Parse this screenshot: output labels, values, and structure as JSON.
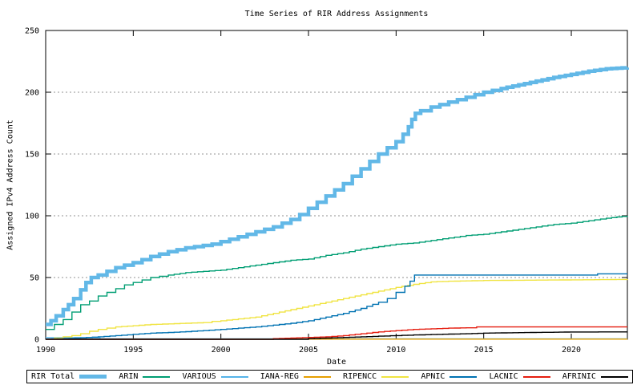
{
  "chart_data": {
    "type": "line",
    "title": "Time Series of RIR Address Assignments",
    "xlabel": "Date",
    "ylabel": "Assigned IPv4 Address Count",
    "xlim": [
      1990,
      2023.2
    ],
    "ylim": [
      0,
      250
    ],
    "xticks": [
      "1990",
      "1995",
      "2000",
      "2005",
      "2010",
      "2015",
      "2020"
    ],
    "xtick_values": [
      1990,
      1995,
      2000,
      2005,
      2010,
      2015,
      2020
    ],
    "yticks": [
      "0",
      "50",
      "100",
      "150",
      "200",
      "250"
    ],
    "ytick_values": [
      0,
      50,
      100,
      150,
      200,
      250
    ],
    "grid": "horizontal-dashed",
    "grid_color": "#909090",
    "legend_position": "bottom-row-boxed",
    "series": [
      {
        "name": "RIR Total",
        "color": "#62b8e7",
        "line_width": 4.5,
        "points": [
          [
            1990,
            12
          ],
          [
            1990.3,
            15
          ],
          [
            1990.6,
            19
          ],
          [
            1991,
            24
          ],
          [
            1991.3,
            28
          ],
          [
            1991.6,
            33
          ],
          [
            1992,
            40
          ],
          [
            1992.3,
            46
          ],
          [
            1992.6,
            50
          ],
          [
            1993,
            52
          ],
          [
            1993.5,
            55
          ],
          [
            1994,
            58
          ],
          [
            1994.5,
            60
          ],
          [
            1995,
            62
          ],
          [
            1995.5,
            64.5
          ],
          [
            1996,
            67
          ],
          [
            1996.5,
            69
          ],
          [
            1997,
            71
          ],
          [
            1997.5,
            72.5
          ],
          [
            1998,
            74
          ],
          [
            1998.5,
            75
          ],
          [
            1999,
            76
          ],
          [
            1999.5,
            77
          ],
          [
            2000,
            79
          ],
          [
            2000.5,
            81
          ],
          [
            2001,
            83
          ],
          [
            2001.5,
            85
          ],
          [
            2002,
            87
          ],
          [
            2002.5,
            89
          ],
          [
            2003,
            91
          ],
          [
            2003.5,
            94
          ],
          [
            2004,
            97
          ],
          [
            2004.5,
            101
          ],
          [
            2005,
            106
          ],
          [
            2005.5,
            111
          ],
          [
            2006,
            116
          ],
          [
            2006.5,
            121
          ],
          [
            2007,
            126
          ],
          [
            2007.5,
            132
          ],
          [
            2008,
            138
          ],
          [
            2008.5,
            144
          ],
          [
            2009,
            150
          ],
          [
            2009.5,
            155
          ],
          [
            2010,
            160
          ],
          [
            2010.4,
            166
          ],
          [
            2010.7,
            172
          ],
          [
            2010.9,
            178
          ],
          [
            2011.1,
            183
          ],
          [
            2011.4,
            185
          ],
          [
            2012,
            188
          ],
          [
            2012.5,
            190
          ],
          [
            2013,
            192
          ],
          [
            2013.5,
            194
          ],
          [
            2014,
            196
          ],
          [
            2014.5,
            198
          ],
          [
            2015,
            200
          ],
          [
            2015.5,
            201.5
          ],
          [
            2016,
            203
          ],
          [
            2017,
            206
          ],
          [
            2018,
            209
          ],
          [
            2019,
            212
          ],
          [
            2020,
            214.5
          ],
          [
            2021,
            217
          ],
          [
            2022,
            219
          ],
          [
            2023.2,
            220
          ]
        ]
      },
      {
        "name": "ARIN",
        "color": "#009e73",
        "line_width": 1.4,
        "points": [
          [
            1990,
            8
          ],
          [
            1990.5,
            12
          ],
          [
            1991,
            16
          ],
          [
            1991.5,
            22
          ],
          [
            1992,
            28
          ],
          [
            1992.5,
            31
          ],
          [
            1993,
            35
          ],
          [
            1993.5,
            38
          ],
          [
            1994,
            41
          ],
          [
            1994.5,
            44
          ],
          [
            1995,
            46
          ],
          [
            1995.5,
            48
          ],
          [
            1996,
            50
          ],
          [
            1996.5,
            51
          ],
          [
            1997,
            52
          ],
          [
            1998,
            54
          ],
          [
            1999,
            55
          ],
          [
            2000,
            56
          ],
          [
            2001,
            58
          ],
          [
            2002,
            60
          ],
          [
            2003,
            62
          ],
          [
            2004,
            64
          ],
          [
            2005,
            65
          ],
          [
            2006,
            68
          ],
          [
            2007,
            70
          ],
          [
            2008,
            73
          ],
          [
            2009,
            75
          ],
          [
            2010,
            77
          ],
          [
            2011,
            78
          ],
          [
            2012,
            80
          ],
          [
            2013,
            82
          ],
          [
            2014,
            84
          ],
          [
            2015,
            85
          ],
          [
            2016,
            87
          ],
          [
            2017,
            89
          ],
          [
            2018,
            91
          ],
          [
            2019,
            93
          ],
          [
            2020,
            94
          ],
          [
            2021,
            96
          ],
          [
            2022,
            98
          ],
          [
            2023.2,
            100
          ]
        ]
      },
      {
        "name": "VARIOUS",
        "color": "#56b4e9",
        "line_width": 1.4,
        "points": [
          [
            1990,
            1.3
          ],
          [
            1993,
            1.3
          ],
          [
            1993.1,
            0.4
          ],
          [
            2023.2,
            0.4
          ]
        ]
      },
      {
        "name": "IANA-REG",
        "color": "#e69f00",
        "line_width": 1.4,
        "points": [
          [
            1990,
            0.15
          ],
          [
            2023.2,
            0.15
          ]
        ]
      },
      {
        "name": "RIPENCC",
        "color": "#f0e442",
        "line_width": 1.4,
        "points": [
          [
            1990,
            0.2
          ],
          [
            1990.5,
            1
          ],
          [
            1991,
            2
          ],
          [
            1991.5,
            3
          ],
          [
            1992,
            4.5
          ],
          [
            1992.5,
            6.5
          ],
          [
            1993,
            8
          ],
          [
            1993.5,
            9
          ],
          [
            1994,
            10
          ],
          [
            1995,
            11
          ],
          [
            1996,
            12
          ],
          [
            1997,
            12.5
          ],
          [
            1998,
            13
          ],
          [
            1999,
            13.5
          ],
          [
            1999.5,
            14.5
          ],
          [
            2000,
            15
          ],
          [
            2001,
            16.5
          ],
          [
            2002,
            18
          ],
          [
            2003,
            21
          ],
          [
            2004,
            24
          ],
          [
            2005,
            27
          ],
          [
            2006,
            30
          ],
          [
            2007,
            33
          ],
          [
            2008,
            36
          ],
          [
            2009,
            39
          ],
          [
            2010,
            42
          ],
          [
            2011,
            44.5
          ],
          [
            2012,
            46.5
          ],
          [
            2013,
            47
          ],
          [
            2014,
            47.3
          ],
          [
            2015,
            47.6
          ],
          [
            2017,
            47.8
          ],
          [
            2019,
            48
          ],
          [
            2021,
            48.2
          ],
          [
            2023.2,
            48.5
          ]
        ]
      },
      {
        "name": "APNIC",
        "color": "#0072b2",
        "line_width": 1.4,
        "points": [
          [
            1990,
            0.1
          ],
          [
            1991,
            0.5
          ],
          [
            1992,
            1.2
          ],
          [
            1993,
            2
          ],
          [
            1994,
            3
          ],
          [
            1995,
            4
          ],
          [
            1996,
            5
          ],
          [
            1997,
            5.5
          ],
          [
            1998,
            6.2
          ],
          [
            1999,
            7
          ],
          [
            2000,
            8
          ],
          [
            2001,
            9
          ],
          [
            2002,
            10
          ],
          [
            2003,
            11.5
          ],
          [
            2004,
            13
          ],
          [
            2005,
            15
          ],
          [
            2006,
            18
          ],
          [
            2007,
            21
          ],
          [
            2008,
            25
          ],
          [
            2009,
            30
          ],
          [
            2009.5,
            33
          ],
          [
            2010,
            38
          ],
          [
            2010.5,
            43
          ],
          [
            2010.8,
            47
          ],
          [
            2011.05,
            52
          ],
          [
            2015,
            52
          ],
          [
            2021.4,
            52
          ],
          [
            2021.5,
            53
          ],
          [
            2023.2,
            53
          ]
        ]
      },
      {
        "name": "LACNIC",
        "color": "#e51e10",
        "line_width": 1.4,
        "points": [
          [
            1990,
            0
          ],
          [
            2002.8,
            0
          ],
          [
            2003,
            0.5
          ],
          [
            2004,
            1
          ],
          [
            2005,
            1.5
          ],
          [
            2006,
            2
          ],
          [
            2007,
            3
          ],
          [
            2008,
            4.5
          ],
          [
            2009,
            6
          ],
          [
            2010,
            7
          ],
          [
            2011,
            8
          ],
          [
            2012,
            8.5
          ],
          [
            2013,
            9
          ],
          [
            2014,
            9.3
          ],
          [
            2014.6,
            10
          ],
          [
            2023.2,
            10
          ]
        ]
      },
      {
        "name": "AFRINIC",
        "color": "#000000",
        "line_width": 1.4,
        "points": [
          [
            1990,
            0
          ],
          [
            2004.6,
            0
          ],
          [
            2005,
            0.5
          ],
          [
            2006,
            1
          ],
          [
            2007,
            1.5
          ],
          [
            2008,
            2
          ],
          [
            2009,
            2.5
          ],
          [
            2010,
            3
          ],
          [
            2011,
            3.5
          ],
          [
            2012,
            3.8
          ],
          [
            2013,
            4.2
          ],
          [
            2014,
            4.5
          ],
          [
            2015,
            5
          ],
          [
            2016,
            5.2
          ],
          [
            2017,
            5.4
          ],
          [
            2018,
            5.6
          ],
          [
            2019,
            5.7
          ],
          [
            2019.9,
            5.9
          ],
          [
            2023.2,
            6
          ]
        ]
      }
    ]
  }
}
